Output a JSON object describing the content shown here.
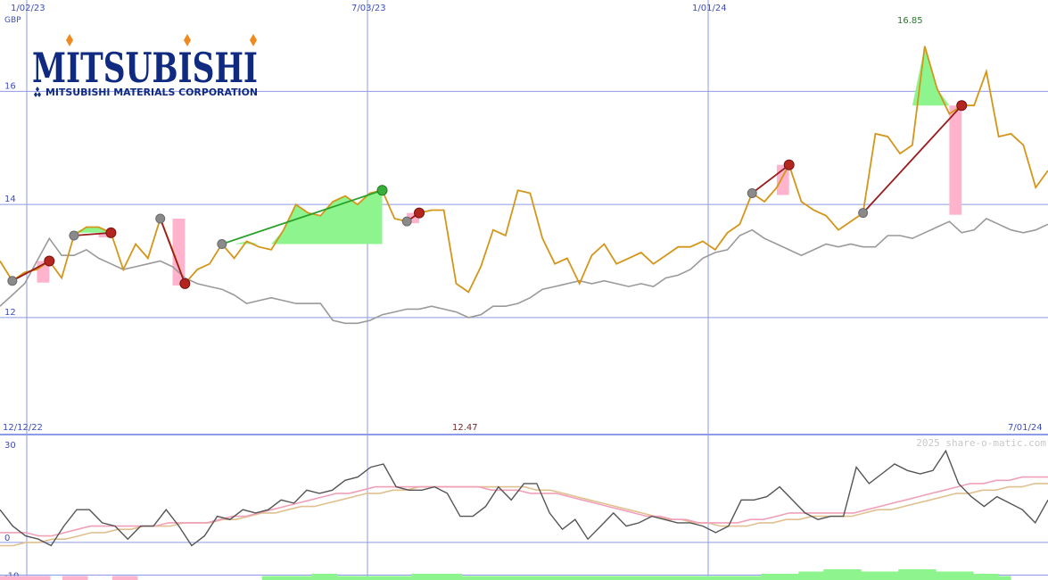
{
  "colors": {
    "grid": "#8e9be8",
    "axis_text": "#3e4dbb",
    "price_line": "#d4961a",
    "benchmark_line": "#9a9a9a",
    "gain_fill": "#8ef58e",
    "loss_fill": "#ffb3cc",
    "gain_connector": "#2aa02a",
    "loss_connector": "#9b1c1c",
    "high_label": "#2a7a2a",
    "low_label": "#7a2a2a",
    "momentum_line": "#555555",
    "ma_fast": "#f0a0b8",
    "ma_slow": "#e0c090",
    "volume_up": "#8ef58e",
    "volume_down": "#ffb3cc",
    "logo_blue": "#0f2a80",
    "logo_diamond": "#f08a20"
  },
  "logo": {
    "brand": "MITSUBISHI",
    "company": "MITSUBISHI MATERIALS CORPORATION"
  },
  "top_panel": {
    "date_labels": [
      "1/02/23",
      "7/03/23",
      "1/01/24"
    ],
    "currency": "GBP",
    "high_label": "16.85"
  },
  "bottom_panel": {
    "start_date": "12/12/22",
    "end_date": "7/01/24",
    "low_label": "12.47",
    "copyright": "2025 share-o-matic.com"
  },
  "chart_data": [
    {
      "type": "line",
      "panel": "price",
      "currency": "GBP",
      "x_range": [
        "12/12/22",
        "7/01/24"
      ],
      "ylim": [
        10.2,
        17.3
      ],
      "yticks": [
        12,
        14,
        16
      ],
      "x_tick_labels": [
        "1/02/23",
        "7/03/23",
        "1/01/24"
      ],
      "grid": true,
      "annotations": [
        {
          "text": "16.85",
          "kind": "high"
        }
      ],
      "series": [
        {
          "role": "price",
          "values": [
            13.0,
            12.65,
            12.8,
            12.85,
            13.0,
            12.7,
            13.45,
            13.6,
            13.6,
            13.5,
            12.85,
            13.3,
            13.05,
            13.75,
            13.2,
            12.6,
            12.85,
            12.95,
            13.3,
            13.05,
            13.35,
            13.25,
            13.2,
            13.55,
            14.0,
            13.85,
            13.8,
            14.05,
            14.15,
            14.0,
            14.2,
            14.25,
            13.75,
            13.7,
            13.85,
            13.9,
            13.9,
            12.6,
            12.45,
            12.9,
            13.55,
            13.45,
            14.25,
            14.2,
            13.4,
            12.95,
            13.05,
            12.6,
            13.1,
            13.3,
            12.95,
            13.05,
            13.15,
            12.95,
            13.1,
            13.25,
            13.25,
            13.35,
            13.2,
            13.5,
            13.65,
            14.2,
            14.05,
            14.3,
            14.7,
            14.05,
            13.9,
            13.8,
            13.55,
            13.7,
            13.85,
            15.25,
            15.2,
            14.9,
            15.05,
            16.8,
            16.05,
            15.6,
            15.75,
            15.75,
            16.35,
            15.2,
            15.25,
            15.05,
            14.3,
            14.6
          ]
        },
        {
          "role": "benchmark",
          "values": [
            12.2,
            12.4,
            12.6,
            13.0,
            13.4,
            13.1,
            13.1,
            13.2,
            13.05,
            12.95,
            12.85,
            12.9,
            12.95,
            13.0,
            12.9,
            12.7,
            12.6,
            12.55,
            12.5,
            12.4,
            12.25,
            12.3,
            12.35,
            12.3,
            12.25,
            12.25,
            12.25,
            11.95,
            11.9,
            11.9,
            11.95,
            12.05,
            12.1,
            12.15,
            12.15,
            12.2,
            12.15,
            12.1,
            12.0,
            12.05,
            12.2,
            12.2,
            12.25,
            12.35,
            12.5,
            12.55,
            12.6,
            12.65,
            12.6,
            12.65,
            12.6,
            12.55,
            12.6,
            12.55,
            12.7,
            12.75,
            12.85,
            13.05,
            13.15,
            13.2,
            13.45,
            13.55,
            13.4,
            13.3,
            13.2,
            13.1,
            13.2,
            13.3,
            13.25,
            13.3,
            13.25,
            13.25,
            13.45,
            13.45,
            13.4,
            13.5,
            13.6,
            13.7,
            13.5,
            13.55,
            13.75,
            13.65,
            13.55,
            13.5,
            13.55,
            13.65
          ]
        }
      ],
      "trades": [
        {
          "open": 1,
          "close": 4,
          "result": "loss"
        },
        {
          "open": 6,
          "close": 9,
          "result": "loss"
        },
        {
          "open": 13,
          "close": 15,
          "result": "loss"
        },
        {
          "open": 18,
          "close": 31,
          "result": "gain"
        },
        {
          "open": 33,
          "close": 34,
          "result": "loss"
        },
        {
          "open": 61,
          "close": 64,
          "result": "loss"
        },
        {
          "open": 70,
          "close": 78,
          "result": "loss"
        }
      ]
    },
    {
      "type": "line",
      "panel": "momentum",
      "ylim": [
        -11.5,
        33
      ],
      "yticks": [
        -10,
        0,
        30
      ],
      "grid": true,
      "annotations": [
        {
          "text": "12.47",
          "kind": "low"
        }
      ],
      "series": [
        {
          "role": "momentum",
          "values": [
            10,
            5,
            2,
            1,
            -1,
            5,
            10,
            10,
            6,
            5,
            1,
            5,
            5,
            10,
            5,
            -1,
            2,
            8,
            7,
            10,
            9,
            10,
            13,
            12,
            16,
            15,
            16,
            19,
            20,
            23,
            24,
            17,
            16,
            16,
            17,
            15,
            8,
            8,
            11,
            17,
            13,
            18,
            18,
            9,
            4,
            7,
            1,
            5,
            9,
            5,
            6,
            8,
            7,
            6,
            6,
            5,
            3,
            5,
            13,
            13,
            14,
            17,
            13,
            9,
            7,
            8,
            8,
            23,
            18,
            21,
            24,
            22,
            21,
            22,
            28,
            18,
            14,
            11,
            14,
            12,
            10,
            6,
            13
          ]
        },
        {
          "role": "ma_fast",
          "values": [
            3,
            3,
            3,
            2,
            2,
            3,
            4,
            5,
            5,
            5,
            5,
            5,
            5,
            6,
            6,
            6,
            6,
            7,
            8,
            8,
            9,
            10,
            11,
            12,
            13,
            14,
            15,
            15,
            16,
            17,
            17,
            17,
            17,
            17,
            17,
            17,
            17,
            17,
            16,
            16,
            16,
            15,
            15,
            15,
            14,
            13,
            12,
            11,
            10,
            9,
            8,
            8,
            7,
            7,
            6,
            6,
            6,
            6,
            7,
            7,
            8,
            9,
            9,
            9,
            9,
            9,
            9,
            10,
            11,
            12,
            13,
            14,
            15,
            16,
            17,
            18,
            18,
            19,
            19,
            20,
            20,
            20
          ]
        },
        {
          "role": "ma_slow",
          "values": [
            -1,
            -1,
            0,
            0,
            1,
            1,
            2,
            3,
            3,
            4,
            4,
            5,
            5,
            5,
            6,
            6,
            6,
            7,
            7,
            8,
            9,
            9,
            10,
            11,
            11,
            12,
            13,
            14,
            15,
            15,
            16,
            16,
            17,
            17,
            17,
            17,
            17,
            17,
            17,
            17,
            17,
            16,
            16,
            15,
            14,
            13,
            12,
            11,
            10,
            9,
            8,
            7,
            7,
            6,
            6,
            5,
            5,
            5,
            6,
            6,
            7,
            7,
            8,
            8,
            8,
            8,
            9,
            10,
            10,
            11,
            12,
            13,
            14,
            15,
            15,
            16,
            16,
            17,
            17,
            18,
            18
          ]
        }
      ]
    },
    {
      "type": "bar",
      "panel": "volume",
      "description_series": "signed volume strength",
      "values": [
        -1,
        -1,
        -1,
        -1,
        0,
        -1,
        -1,
        0,
        0,
        -1,
        -1,
        0,
        0,
        0,
        0,
        0,
        0,
        0,
        0,
        0,
        0,
        1,
        1,
        1,
        1,
        2,
        2,
        1,
        1,
        1,
        1,
        1,
        1,
        2,
        2,
        2,
        2,
        1,
        1,
        1,
        1,
        1,
        1,
        1,
        1,
        1,
        1,
        1,
        1,
        1,
        1,
        1,
        1,
        1,
        1,
        1,
        1,
        1,
        1,
        1,
        1,
        2,
        2,
        2,
        3,
        3,
        4,
        4,
        4,
        3,
        3,
        3,
        4,
        4,
        4,
        3,
        3,
        3,
        2,
        2,
        1,
        0,
        0,
        0
      ]
    }
  ]
}
